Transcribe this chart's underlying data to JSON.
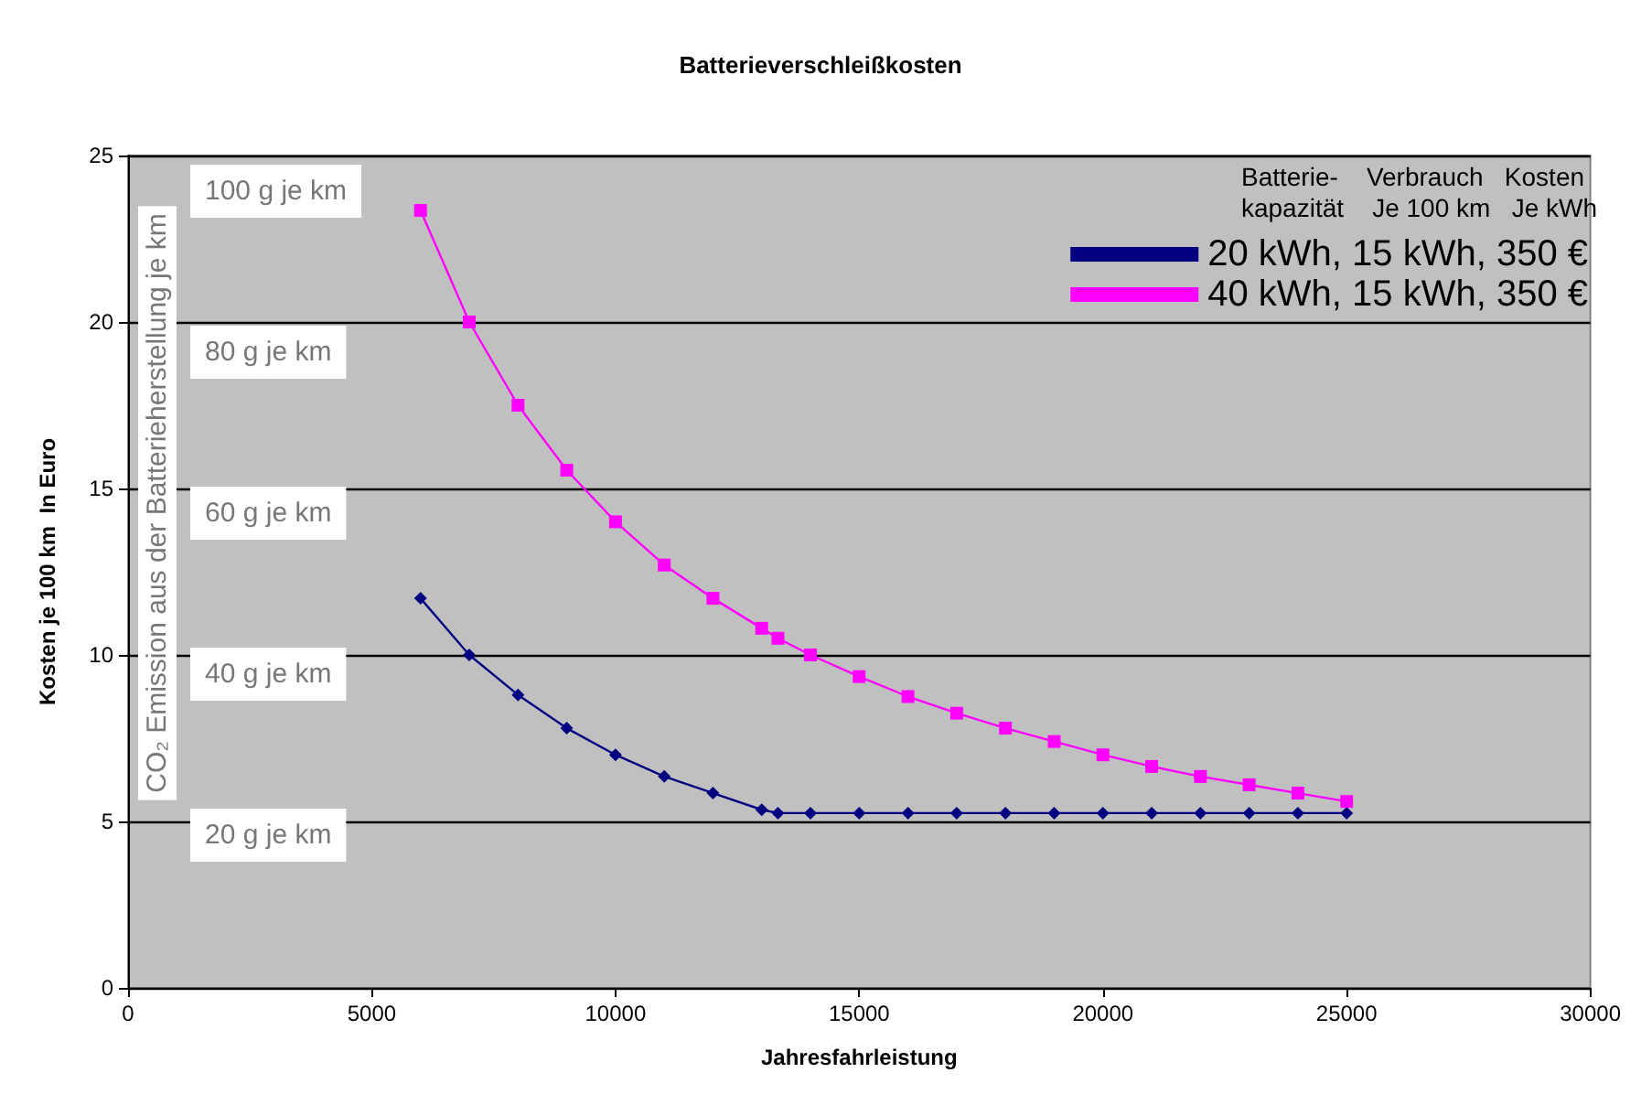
{
  "chart_data": {
    "type": "line",
    "title": "Batterieverschleißkosten",
    "xlabel": "Jahresfahrleistung",
    "ylabel": "Kosten je 100 km  In Euro",
    "y2label": "CO₂ Emission aus der Batterieherstellung je km",
    "legend_title": "Batterie-    Verbrauch   Kosten\nkapazität    Je 100 km   Je kWh",
    "x": [
      6000,
      7000,
      8000,
      9000,
      10000,
      11000,
      12000,
      13000,
      13333,
      14000,
      15000,
      16000,
      17000,
      18000,
      19000,
      20000,
      21000,
      22000,
      23000,
      24000,
      25000
    ],
    "series": [
      {
        "name": "20 kWh, 15 kWh, 350 €",
        "color": "#000080",
        "marker": "diamond",
        "values": [
          11.7,
          10.0,
          8.8,
          7.8,
          7.0,
          6.35,
          5.85,
          5.35,
          5.25,
          5.25,
          5.25,
          5.25,
          5.25,
          5.25,
          5.25,
          5.25,
          5.25,
          5.25,
          5.25,
          5.25,
          5.25
        ]
      },
      {
        "name": "40 kWh, 15 kWh, 350 €",
        "color": "#ff00ff",
        "marker": "square",
        "values": [
          23.35,
          20.0,
          17.5,
          15.55,
          14.0,
          12.7,
          11.7,
          10.8,
          10.5,
          10.0,
          9.35,
          8.75,
          8.25,
          7.8,
          7.4,
          7.0,
          6.65,
          6.35,
          6.1,
          5.85,
          5.6
        ]
      }
    ],
    "xlim": [
      0,
      30000
    ],
    "xticks": [
      0,
      5000,
      10000,
      15000,
      20000,
      25000,
      30000
    ],
    "ylim": [
      0,
      25
    ],
    "yticks": [
      0,
      5,
      10,
      15,
      20,
      25
    ],
    "annotations": [
      "100 g je km",
      "80 g je km",
      "60 g je km",
      "40 g je km",
      "20 g je km"
    ],
    "grid": "y",
    "legend": "top right"
  }
}
